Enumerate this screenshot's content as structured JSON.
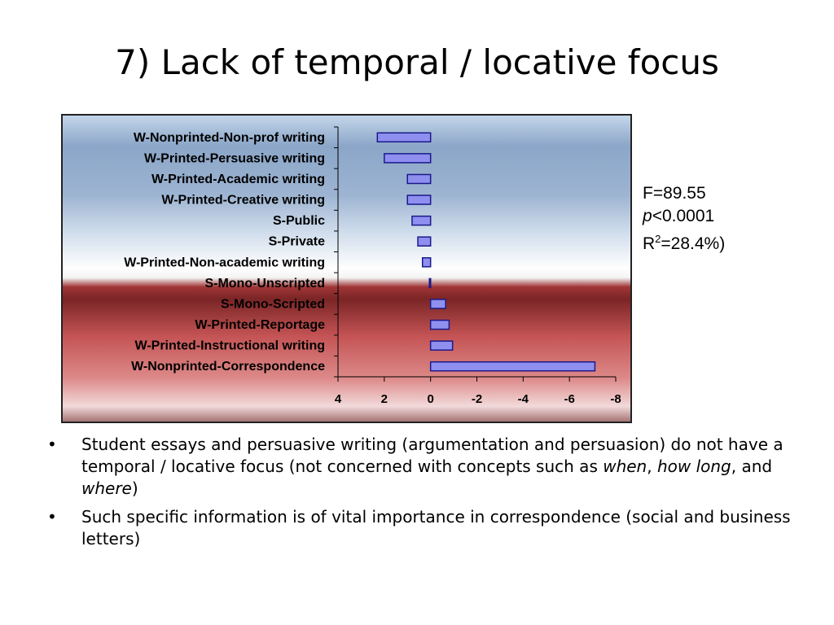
{
  "slide": {
    "title": "7) Lack of temporal / locative focus"
  },
  "stats": {
    "f_line": "F=89.55",
    "p_symbol": "p",
    "p_rest": "<0.0001",
    "r_prefix": "R",
    "r_sup": "2",
    "r_rest": "=28.4%)"
  },
  "chart_data": {
    "type": "bar",
    "orientation": "horizontal",
    "title": "",
    "xlabel": "",
    "ylabel": "",
    "x_axis_reversed": true,
    "xlim": [
      4,
      -8
    ],
    "x_ticks": [
      4,
      2,
      0,
      -2,
      -4,
      -6,
      -8
    ],
    "grid": false,
    "legend": "none",
    "bar_color": "#8f8ff0",
    "bar_border": "#1a1a8a",
    "categories": [
      "W-Nonprinted-Non-prof writing",
      "W-Printed-Persuasive writing",
      "W-Printed-Academic writing",
      "W-Printed-Creative writing",
      "S-Public",
      "S-Private",
      "W-Printed-Non-academic writing",
      "S-Mono-Unscripted",
      "S-Mono-Scripted",
      "W-Printed-Reportage",
      "W-Printed-Instructional writing",
      "W-Nonprinted-Correspondence"
    ],
    "values": [
      2.3,
      2.0,
      1.0,
      1.0,
      0.8,
      0.55,
      0.35,
      0.05,
      -0.65,
      -0.8,
      -0.95,
      -7.1
    ]
  },
  "bullets": [
    {
      "p1": "Student essays and persuasive writing (argumentation and persuasion) do not have a temporal / locative focus (not concerned with concepts such as ",
      "em1": "when",
      "p2": ", ",
      "em2": "how long",
      "p3": ", and ",
      "em3": "where",
      "p4": ")"
    },
    {
      "text": "Such specific information is of vital importance in correspondence (social and business letters)"
    }
  ]
}
